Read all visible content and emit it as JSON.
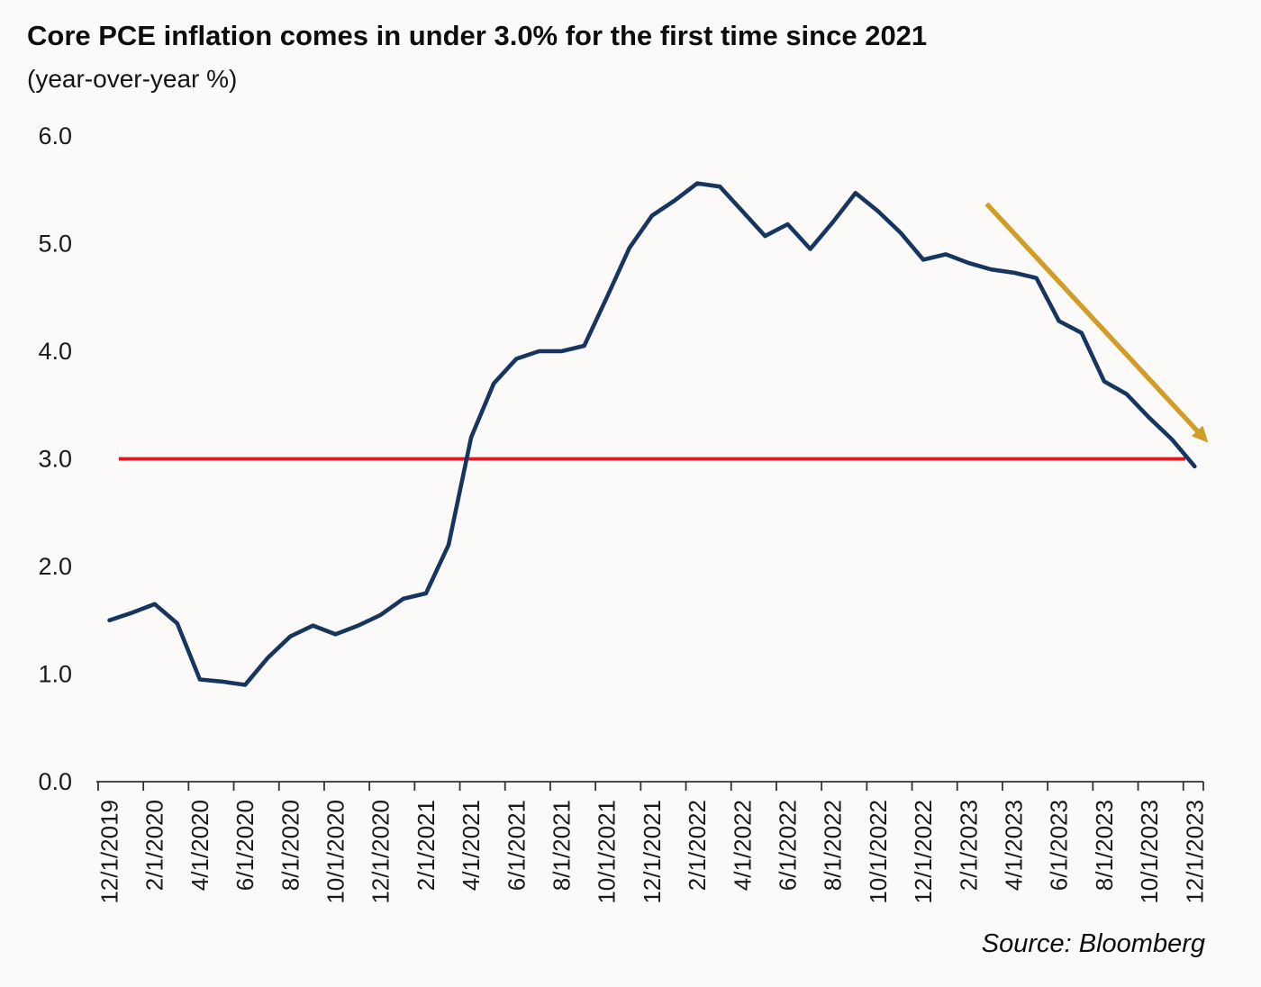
{
  "header": {
    "title": "Core PCE inflation comes in under 3.0% for the first time since 2021",
    "subtitle": "(year-over-year %)"
  },
  "footer": {
    "source": "Source: Bloomberg"
  },
  "colors": {
    "series_line": "#17365f",
    "reference_line": "#e8141a",
    "trend_arrow": "#d09e27",
    "axis": "#333333",
    "tick_text": "#1a1a1a"
  },
  "chart_data": {
    "type": "line",
    "title": "Core PCE inflation comes in under 3.0% for the first time since 2021",
    "subtitle": "(year-over-year %)",
    "xlabel": "",
    "ylabel": "year-over-year %",
    "ylim": [
      0.0,
      6.0
    ],
    "y_ticks": [
      "0.0",
      "1.0",
      "2.0",
      "3.0",
      "4.0",
      "5.0",
      "6.0"
    ],
    "x_tick_step": 2,
    "grid": false,
    "legend_position": "none",
    "x": [
      "12/1/2019",
      "1/1/2020",
      "2/1/2020",
      "3/1/2020",
      "4/1/2020",
      "5/1/2020",
      "6/1/2020",
      "7/1/2020",
      "8/1/2020",
      "9/1/2020",
      "10/1/2020",
      "11/1/2020",
      "12/1/2020",
      "1/1/2021",
      "2/1/2021",
      "3/1/2021",
      "4/1/2021",
      "5/1/2021",
      "6/1/2021",
      "7/1/2021",
      "8/1/2021",
      "9/1/2021",
      "10/1/2021",
      "11/1/2021",
      "12/1/2021",
      "1/1/2022",
      "2/1/2022",
      "3/1/2022",
      "4/1/2022",
      "5/1/2022",
      "6/1/2022",
      "7/1/2022",
      "8/1/2022",
      "9/1/2022",
      "10/1/2022",
      "11/1/2022",
      "12/1/2022",
      "1/1/2023",
      "2/1/2023",
      "3/1/2023",
      "4/1/2023",
      "5/1/2023",
      "6/1/2023",
      "7/1/2023",
      "8/1/2023",
      "9/1/2023",
      "10/1/2023",
      "11/1/2023",
      "12/1/2023"
    ],
    "series": [
      {
        "name": "Core PCE inflation (year-over-year %)",
        "color": "#17365f",
        "values": [
          1.5,
          1.57,
          1.65,
          1.47,
          0.95,
          0.93,
          0.9,
          1.15,
          1.35,
          1.45,
          1.37,
          1.45,
          1.55,
          1.7,
          1.75,
          2.2,
          3.2,
          3.7,
          3.93,
          4.0,
          4.0,
          4.05,
          4.5,
          4.96,
          5.26,
          5.4,
          5.56,
          5.53,
          5.3,
          5.07,
          5.18,
          4.95,
          5.2,
          5.47,
          5.3,
          5.1,
          4.85,
          4.9,
          4.82,
          4.76,
          4.73,
          4.68,
          4.28,
          4.17,
          3.72,
          3.6,
          3.38,
          3.18,
          2.93
        ]
      }
    ],
    "reference_line": {
      "value": 3.0,
      "color": "#e8141a"
    },
    "annotation_arrow": {
      "description": "downward trend arrow over 2023 decline",
      "color": "#d09e27",
      "from": {
        "month_index": 38.8,
        "value": 5.37
      },
      "to": {
        "month_index": 48.6,
        "value": 3.15
      }
    }
  }
}
